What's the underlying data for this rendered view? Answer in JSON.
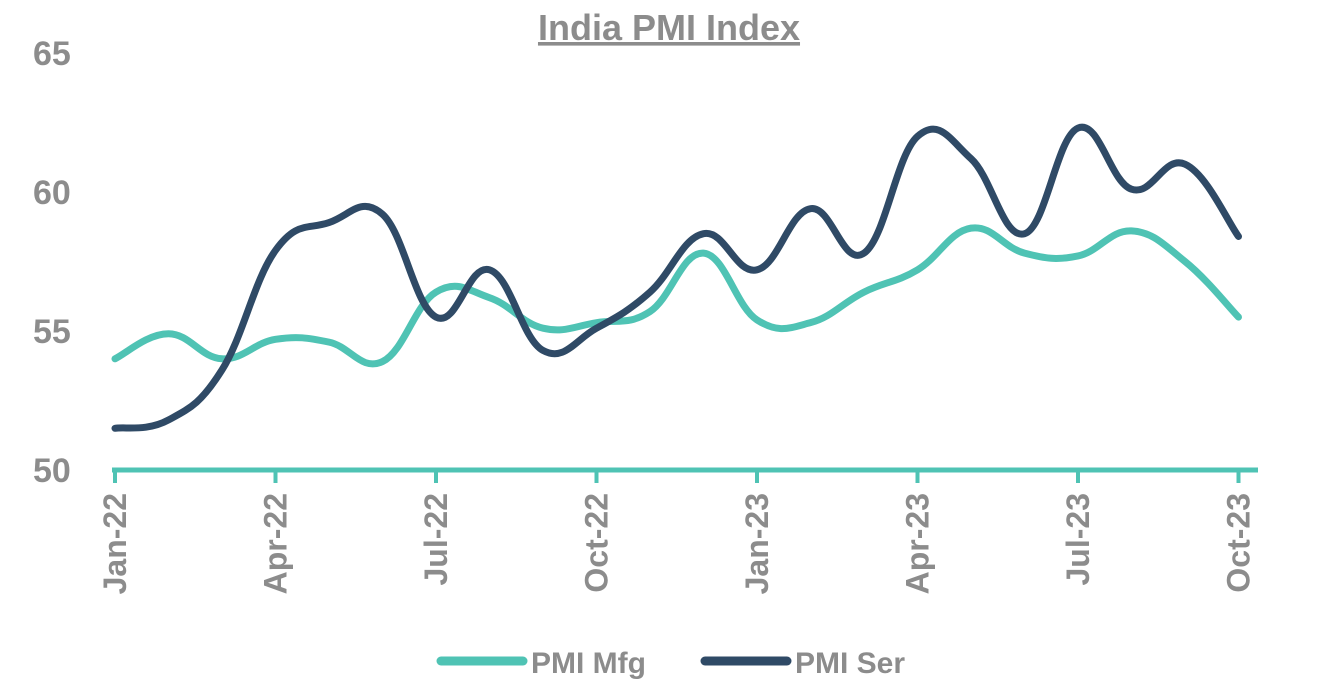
{
  "chart_data": {
    "type": "line",
    "title": "India PMI Index",
    "xlabel": "",
    "ylabel": "",
    "ylim": [
      50,
      65
    ],
    "yticks": [
      50,
      55,
      60,
      65
    ],
    "x": [
      "Jan-22",
      "Feb-22",
      "Mar-22",
      "Apr-22",
      "May-22",
      "Jun-22",
      "Jul-22",
      "Aug-22",
      "Sep-22",
      "Oct-22",
      "Nov-22",
      "Dec-22",
      "Jan-23",
      "Feb-23",
      "Mar-23",
      "Apr-23",
      "May-23",
      "Jun-23",
      "Jul-23",
      "Aug-23",
      "Sep-23",
      "Oct-23"
    ],
    "xtick_labels": [
      "Jan-22",
      "Apr-22",
      "Jul-22",
      "Oct-22",
      "Jan-23",
      "Apr-23",
      "Jul-23",
      "Oct-23"
    ],
    "series": [
      {
        "name": "PMI Mfg",
        "color": "#4fc3b4",
        "values": [
          54.0,
          54.9,
          54.0,
          54.7,
          54.6,
          53.9,
          56.4,
          56.2,
          55.1,
          55.3,
          55.7,
          57.8,
          55.4,
          55.3,
          56.4,
          57.2,
          58.7,
          57.8,
          57.7,
          58.6,
          57.5,
          55.5
        ]
      },
      {
        "name": "PMI Ser",
        "color": "#2f4a66",
        "values": [
          51.5,
          51.8,
          53.6,
          57.9,
          58.9,
          59.2,
          55.5,
          57.2,
          54.3,
          55.1,
          56.4,
          58.5,
          57.2,
          59.4,
          57.8,
          62.0,
          61.2,
          58.5,
          62.3,
          60.1,
          61.0,
          58.4
        ]
      }
    ],
    "legend_position": "bottom",
    "grid": false
  }
}
